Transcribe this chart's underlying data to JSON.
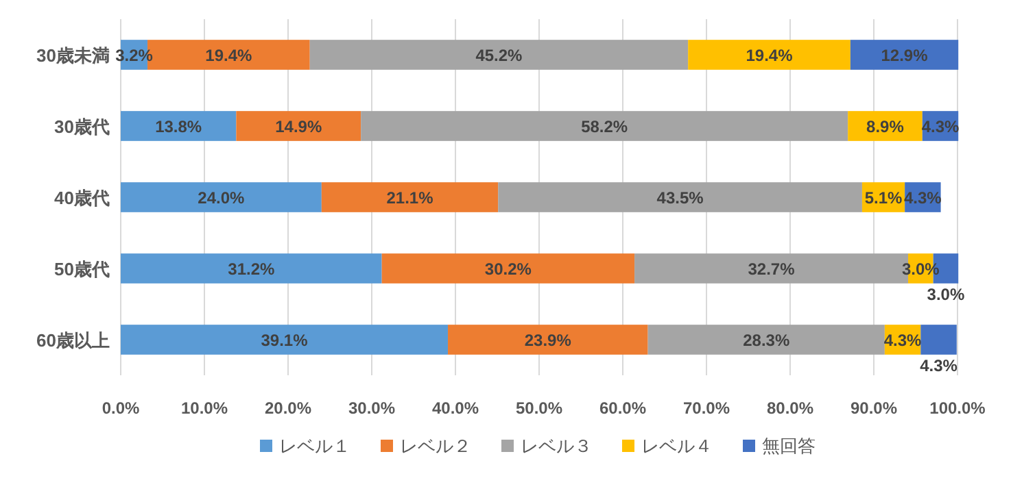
{
  "chart_data": {
    "type": "bar",
    "orientation": "horizontal",
    "stacked": true,
    "categories": [
      "30歳未満",
      "30歳代",
      "40歳代",
      "50歳代",
      "60歳以上"
    ],
    "series": [
      {
        "name": "レベル１",
        "color": "#5b9bd5",
        "values": [
          3.2,
          13.8,
          24.0,
          31.2,
          39.1
        ],
        "value_labels": [
          "3.2%",
          "13.8%",
          "24.0%",
          "31.2%",
          "39.1%"
        ]
      },
      {
        "name": "レベル２",
        "color": "#ed7d31",
        "values": [
          19.4,
          14.9,
          21.1,
          30.2,
          23.9
        ],
        "value_labels": [
          "19.4%",
          "14.9%",
          "21.1%",
          "30.2%",
          "23.9%"
        ]
      },
      {
        "name": "レベル３",
        "color": "#a5a5a5",
        "values": [
          45.2,
          58.2,
          43.5,
          32.7,
          28.3
        ],
        "value_labels": [
          "45.2%",
          "58.2%",
          "43.5%",
          "32.7%",
          "28.3%"
        ]
      },
      {
        "name": "レベル４",
        "color": "#ffc000",
        "values": [
          19.4,
          8.9,
          5.1,
          3.0,
          4.3
        ],
        "value_labels": [
          "19.4%",
          "8.9%",
          "5.1%",
          "3.0%",
          "4.3%"
        ]
      },
      {
        "name": "無回答",
        "color": "#4472c4",
        "values": [
          12.9,
          4.3,
          4.3,
          3.0,
          4.3
        ],
        "value_labels": [
          "12.9%",
          "4.3%",
          "4.3%",
          "3.0%",
          "4.3%"
        ]
      }
    ],
    "xlim": [
      0,
      100
    ],
    "xticks": [
      {
        "value": 0,
        "label": "0.0%"
      },
      {
        "value": 10,
        "label": "10.0%"
      },
      {
        "value": 20,
        "label": "20.0%"
      },
      {
        "value": 30,
        "label": "30.0%"
      },
      {
        "value": 40,
        "label": "40.0%"
      },
      {
        "value": 50,
        "label": "50.0%"
      },
      {
        "value": 60,
        "label": "60.0%"
      },
      {
        "value": 70,
        "label": "70.0%"
      },
      {
        "value": 80,
        "label": "80.0%"
      },
      {
        "value": 90,
        "label": "90.0%"
      },
      {
        "value": 100,
        "label": "100.0%"
      }
    ],
    "grid": "x",
    "legend": "bottom"
  }
}
